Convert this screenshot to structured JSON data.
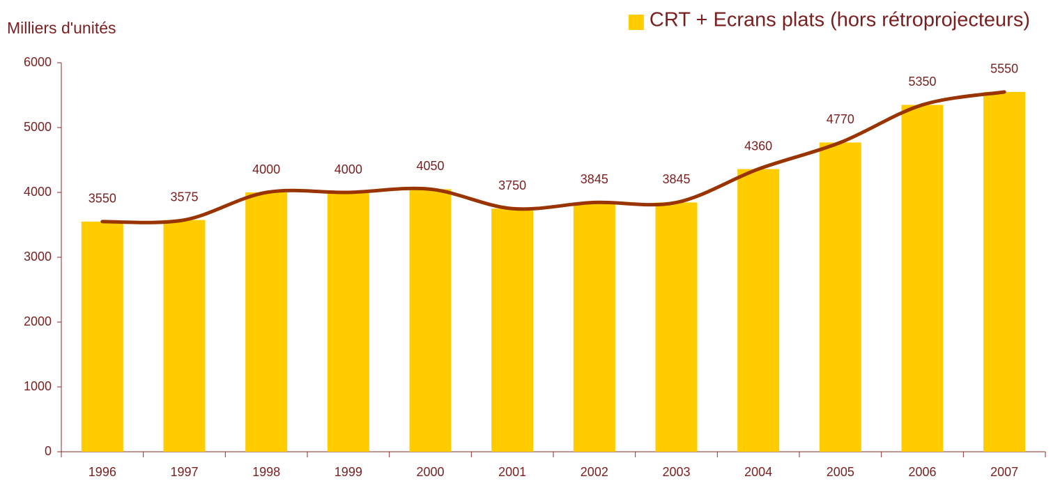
{
  "chart_data": {
    "type": "bar",
    "title": "Milliers d'unités",
    "categories": [
      "1996",
      "1997",
      "1998",
      "1999",
      "2000",
      "2001",
      "2002",
      "2003",
      "2004",
      "2005",
      "2006",
      "2007"
    ],
    "series": [
      {
        "name": "CRT + Ecrans plats (hors rétroprojecteurs)",
        "color": "#ffcc00",
        "values": [
          3550,
          3575,
          4000,
          4000,
          4050,
          3750,
          3845,
          3845,
          4360,
          4770,
          5350,
          5550
        ]
      }
    ],
    "trend_color": "#993300",
    "ylim": [
      0,
      6000
    ],
    "yticks": [
      0,
      1000,
      2000,
      3000,
      4000,
      5000,
      6000
    ],
    "legend": "top-right"
  }
}
